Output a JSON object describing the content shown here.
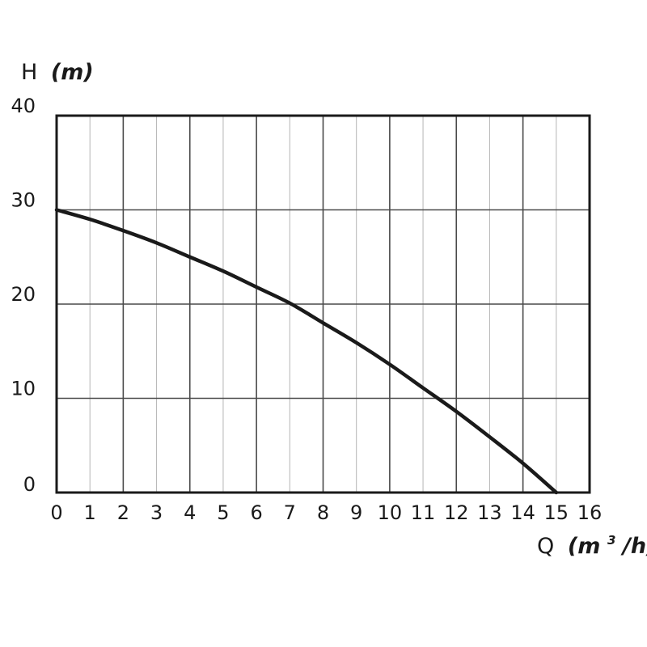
{
  "chart_data": {
    "type": "line",
    "title": "",
    "xlabel": {
      "symbol": "Q",
      "unit_open": "(m",
      "unit_sup": "3",
      "unit_close": "/h)"
    },
    "ylabel": {
      "symbol": "H",
      "unit": "(m)"
    },
    "xlim": [
      0,
      16
    ],
    "ylim": [
      0,
      40
    ],
    "x_ticks": [
      0,
      1,
      2,
      3,
      4,
      5,
      6,
      7,
      8,
      9,
      10,
      11,
      12,
      13,
      14,
      15,
      16
    ],
    "y_ticks": [
      0,
      10,
      20,
      30,
      40
    ],
    "x_major_every": 2,
    "grid": true,
    "legend": "none",
    "series": [
      {
        "color": "#1a1a1a",
        "x": [
          0,
          1,
          2,
          3,
          4,
          5,
          6,
          7,
          8,
          9,
          10,
          11,
          12,
          13,
          14,
          15
        ],
        "y": [
          30,
          29.0,
          27.8,
          26.5,
          25.0,
          23.5,
          21.8,
          20.1,
          18.0,
          15.9,
          13.6,
          11.1,
          8.6,
          5.9,
          3.1,
          0
        ]
      }
    ]
  }
}
